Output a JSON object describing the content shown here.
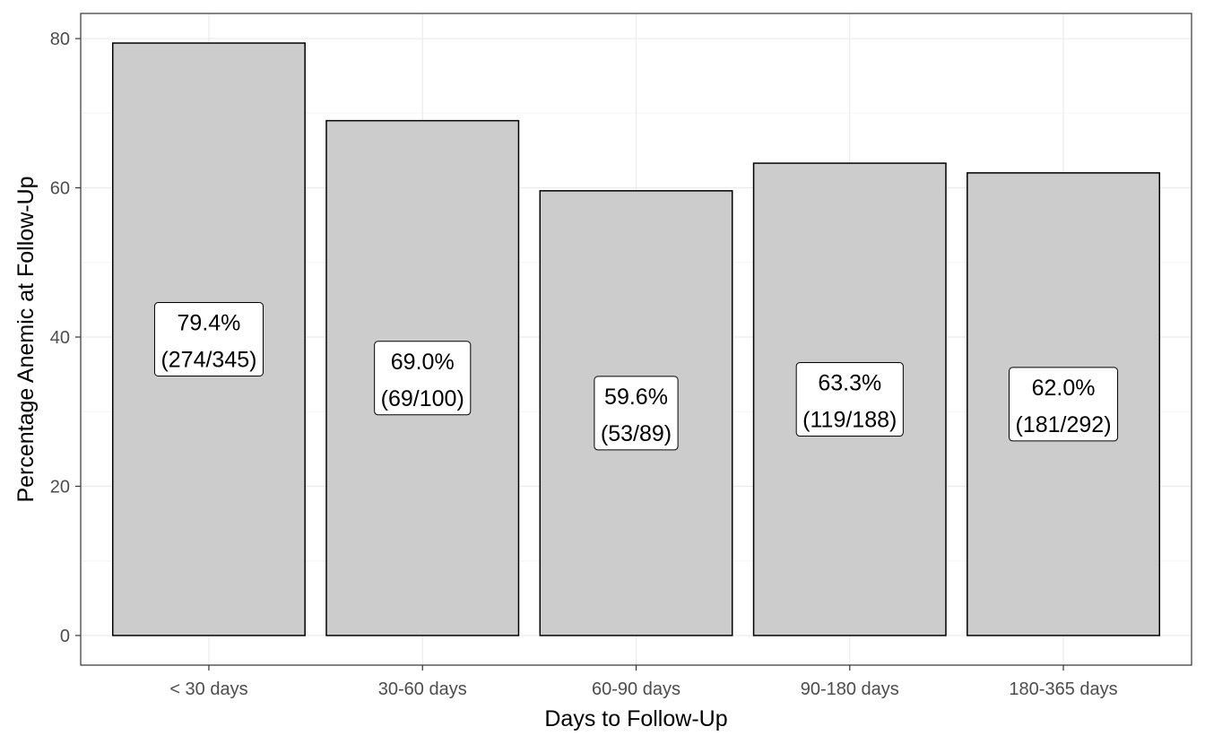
{
  "chart_data": {
    "type": "bar",
    "categories": [
      "< 30 days",
      "30-60 days",
      "60-90 days",
      "90-180 days",
      "180-365 days"
    ],
    "values": [
      79.4,
      69.0,
      59.6,
      63.3,
      62.0
    ],
    "data_labels": [
      {
        "pct": "79.4%",
        "counts": "(274/345)"
      },
      {
        "pct": "69.0%",
        "counts": "(69/100)"
      },
      {
        "pct": "59.6%",
        "counts": "(53/89)"
      },
      {
        "pct": "63.3%",
        "counts": "(119/188)"
      },
      {
        "pct": "62.0%",
        "counts": "(181/292)"
      }
    ],
    "title": "",
    "xlabel": "Days to Follow-Up",
    "ylabel": "Percentage Anemic at Follow-Up",
    "ylim": [
      -3.97,
      83.37
    ],
    "yticks": [
      0,
      20,
      40,
      60,
      80
    ],
    "grid": true,
    "legend": "none",
    "colors": {
      "bar_fill": "#cccccc",
      "bar_stroke": "#000000",
      "panel_border": "#333333",
      "grid_major": "#ebebeb",
      "grid_minor": "#f5f5f5",
      "label_box_fill": "#ffffff"
    }
  }
}
